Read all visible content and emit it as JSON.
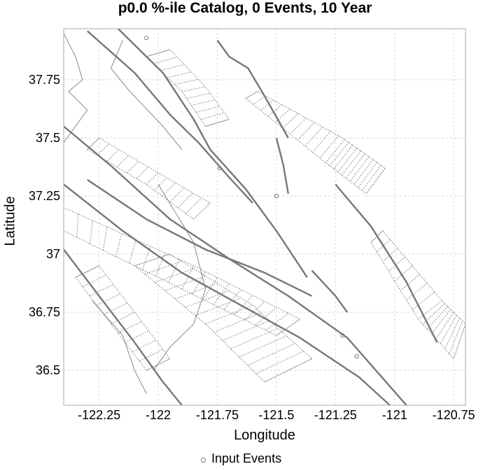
{
  "title": "p0.0 %-ile Catalog, 0 Events, 10 Year",
  "xlabel": "Longitude",
  "ylabel": "Latitude",
  "legend": {
    "label": "Input Events",
    "marker": "open-circle"
  },
  "colors": {
    "fault": "#777777",
    "grid": "#d8d8d8",
    "coast": "#888888",
    "frame": "#aaaaaa"
  },
  "chart_data": {
    "type": "map",
    "xlim": [
      -122.4,
      -120.7
    ],
    "ylim": [
      36.35,
      37.97
    ],
    "grid": true,
    "x_ticks": [
      {
        "value": -122.25,
        "label": "-122.25"
      },
      {
        "value": -122.0,
        "label": "-122"
      },
      {
        "value": -121.75,
        "label": "-121.75"
      },
      {
        "value": -121.5,
        "label": "-121.5"
      },
      {
        "value": -121.25,
        "label": "-121.25"
      },
      {
        "value": -121.0,
        "label": "-121"
      },
      {
        "value": -120.75,
        "label": "-120.75"
      }
    ],
    "y_ticks": [
      {
        "value": 37.75,
        "label": "37.75"
      },
      {
        "value": 37.5,
        "label": "37.5"
      },
      {
        "value": 37.25,
        "label": "37.25"
      },
      {
        "value": 37.0,
        "label": "37"
      },
      {
        "value": 36.75,
        "label": "36.75"
      },
      {
        "value": 36.5,
        "label": "36.5"
      }
    ],
    "events": [
      {
        "lon": -122.05,
        "lat": 37.93
      },
      {
        "lon": -121.5,
        "lat": 37.25
      },
      {
        "lon": -121.22,
        "lat": 36.65
      },
      {
        "lon": -121.74,
        "lat": 37.37
      },
      {
        "lon": -121.16,
        "lat": 36.56
      }
    ],
    "faults": [
      {
        "name": "san-andreas-north",
        "trace": [
          [
            -122.4,
            37.55
          ],
          [
            -122.2,
            37.38
          ],
          [
            -121.95,
            37.15
          ],
          [
            -121.7,
            36.98
          ],
          [
            -121.45,
            36.82
          ],
          [
            -121.2,
            36.64
          ],
          [
            -120.95,
            36.35
          ]
        ]
      },
      {
        "name": "san-andreas-south",
        "trace": [
          [
            -122.4,
            37.3
          ],
          [
            -122.15,
            37.1
          ],
          [
            -121.9,
            36.92
          ],
          [
            -121.65,
            36.78
          ],
          [
            -121.4,
            36.64
          ],
          [
            -121.15,
            36.47
          ],
          [
            -121.02,
            36.35
          ]
        ]
      },
      {
        "name": "hayward",
        "trace": [
          [
            -122.3,
            37.96
          ],
          [
            -122.1,
            37.78
          ],
          [
            -121.95,
            37.6
          ],
          [
            -121.83,
            37.48
          ],
          [
            -121.7,
            37.33
          ],
          [
            -121.6,
            37.22
          ]
        ]
      },
      {
        "name": "calaveras",
        "trace": [
          [
            -122.17,
            37.97
          ],
          [
            -121.98,
            37.78
          ],
          [
            -121.85,
            37.58
          ],
          [
            -121.78,
            37.45
          ],
          [
            -121.63,
            37.28
          ],
          [
            -121.5,
            37.1
          ],
          [
            -121.37,
            36.9
          ]
        ]
      },
      {
        "name": "greenville",
        "trace": [
          [
            -121.75,
            37.92
          ],
          [
            -121.7,
            37.85
          ],
          [
            -121.62,
            37.8
          ],
          [
            -121.55,
            37.68
          ],
          [
            -121.45,
            37.5
          ]
        ]
      },
      {
        "name": "zayante",
        "trace": [
          [
            -122.4,
            37.02
          ],
          [
            -122.25,
            36.82
          ],
          [
            -122.1,
            36.62
          ],
          [
            -121.98,
            36.45
          ],
          [
            -121.9,
            36.35
          ]
        ]
      },
      {
        "name": "sargent",
        "trace": [
          [
            -122.3,
            37.32
          ],
          [
            -122.05,
            37.15
          ],
          [
            -121.8,
            37.02
          ],
          [
            -121.55,
            36.92
          ],
          [
            -121.35,
            36.82
          ]
        ]
      },
      {
        "name": "ortigalita",
        "trace": [
          [
            -121.25,
            37.3
          ],
          [
            -121.1,
            37.12
          ],
          [
            -120.95,
            36.88
          ],
          [
            -120.82,
            36.62
          ]
        ]
      },
      {
        "name": "san-joaquin",
        "trace": [
          [
            -121.5,
            37.5
          ],
          [
            -121.47,
            37.38
          ],
          [
            -121.45,
            37.26
          ]
        ]
      },
      {
        "name": "paicines",
        "trace": [
          [
            -121.35,
            36.93
          ],
          [
            -121.25,
            36.82
          ],
          [
            -121.2,
            36.75
          ]
        ]
      }
    ],
    "fault_zones": [
      {
        "name": "great-valley-thrust-north",
        "left": [
          [
            -121.58,
            37.7
          ],
          [
            -121.22,
            37.5
          ],
          [
            -121.04,
            37.37
          ]
        ],
        "right": [
          [
            -121.63,
            37.67
          ],
          [
            -121.3,
            37.4
          ],
          [
            -121.12,
            37.26
          ]
        ],
        "ticks": 21
      },
      {
        "name": "great-valley-thrust-south",
        "left": [
          [
            -121.05,
            37.1
          ],
          [
            -120.8,
            36.8
          ],
          [
            -120.7,
            36.7
          ]
        ],
        "right": [
          [
            -121.1,
            37.05
          ],
          [
            -120.9,
            36.72
          ],
          [
            -120.75,
            36.55
          ]
        ],
        "ticks": 16
      },
      {
        "name": "santa-cruz-mtns",
        "left": [
          [
            -122.4,
            37.1
          ],
          [
            -121.9,
            36.85
          ],
          [
            -121.5,
            36.65
          ]
        ],
        "right": [
          [
            -122.4,
            37.2
          ],
          [
            -121.85,
            36.95
          ],
          [
            -121.4,
            36.72
          ]
        ],
        "ticks": 18
      },
      {
        "name": "gabilan",
        "left": [
          [
            -122.1,
            36.95
          ],
          [
            -121.8,
            36.7
          ],
          [
            -121.55,
            36.45
          ]
        ],
        "right": [
          [
            -121.95,
            37.0
          ],
          [
            -121.6,
            36.78
          ],
          [
            -121.35,
            36.55
          ]
        ],
        "ticks": 14
      },
      {
        "name": "mt-diablo",
        "left": [
          [
            -122.05,
            37.85
          ],
          [
            -121.9,
            37.7
          ],
          [
            -121.8,
            37.55
          ]
        ],
        "right": [
          [
            -121.95,
            37.88
          ],
          [
            -121.8,
            37.72
          ],
          [
            -121.7,
            37.58
          ]
        ],
        "ticks": 10
      },
      {
        "name": "silver-creek",
        "left": [
          [
            -122.3,
            37.45
          ],
          [
            -122.05,
            37.3
          ],
          [
            -121.85,
            37.15
          ]
        ],
        "right": [
          [
            -122.25,
            37.5
          ],
          [
            -122.0,
            37.35
          ],
          [
            -121.78,
            37.22
          ]
        ],
        "ticks": 12
      },
      {
        "name": "monterey-bay",
        "left": [
          [
            -122.35,
            36.9
          ],
          [
            -122.2,
            36.7
          ],
          [
            -122.05,
            36.5
          ]
        ],
        "right": [
          [
            -122.25,
            36.95
          ],
          [
            -122.1,
            36.75
          ],
          [
            -121.95,
            36.55
          ]
        ],
        "ticks": 10
      }
    ],
    "coastlines": [
      [
        [
          -122.4,
          37.95
        ],
        [
          -122.35,
          37.85
        ],
        [
          -122.32,
          37.75
        ],
        [
          -122.38,
          37.7
        ],
        [
          -122.3,
          37.62
        ],
        [
          -122.35,
          37.55
        ],
        [
          -122.4,
          37.48
        ]
      ],
      [
        [
          -122.15,
          37.92
        ],
        [
          -122.2,
          37.8
        ],
        [
          -122.12,
          37.7
        ],
        [
          -121.98,
          37.55
        ],
        [
          -121.9,
          37.45
        ]
      ],
      [
        [
          -122.0,
          37.3
        ],
        [
          -121.85,
          37.05
        ],
        [
          -121.8,
          36.85
        ],
        [
          -121.85,
          36.7
        ],
        [
          -121.95,
          36.6
        ],
        [
          -122.02,
          36.5
        ]
      ],
      [
        [
          -122.28,
          36.8
        ],
        [
          -122.15,
          36.65
        ],
        [
          -122.1,
          36.5
        ],
        [
          -122.05,
          36.4
        ]
      ]
    ]
  }
}
